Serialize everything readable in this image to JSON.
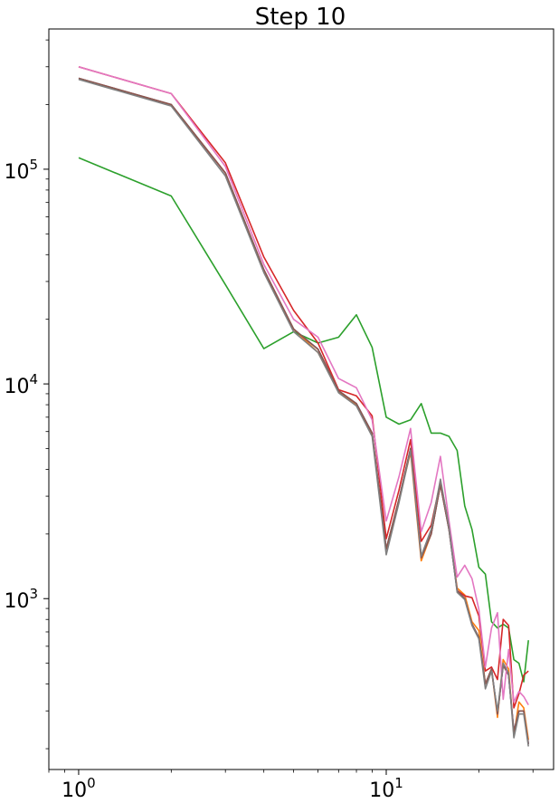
{
  "chart_data": {
    "type": "line",
    "title": "Step 10",
    "xlabel": "",
    "ylabel": "",
    "xscale": "log",
    "yscale": "log",
    "xlim": [
      0.8,
      35
    ],
    "ylim": [
      160,
      450000
    ],
    "grid": false,
    "legend": "none",
    "x_ticks": [
      {
        "value": 1,
        "base": "10",
        "exp": "0"
      },
      {
        "value": 10,
        "base": "10",
        "exp": "1"
      }
    ],
    "y_ticks": [
      {
        "value": 1000,
        "base": "10",
        "exp": "3"
      },
      {
        "value": 10000,
        "base": "10",
        "exp": "4"
      },
      {
        "value": 100000,
        "base": "10",
        "exp": "5"
      }
    ],
    "x": [
      1,
      2,
      3,
      4,
      5,
      6,
      7,
      8,
      9,
      10,
      11,
      12,
      13,
      14,
      15,
      16,
      17,
      18,
      19,
      20,
      21,
      22,
      23,
      24,
      25,
      26,
      27,
      28,
      29,
      30,
      31
    ],
    "series": [
      {
        "color": "#1f77b4",
        "values": [
          265000,
          200000,
          96000,
          34000,
          18000,
          14500,
          9300,
          8100,
          5900,
          1700,
          2900,
          5000,
          1550,
          2000,
          3400,
          2100,
          1090,
          1000,
          760,
          660,
          400,
          470,
          290,
          490,
          440,
          240,
          300,
          300,
          210,
          null,
          null
        ]
      },
      {
        "color": "#ff7f0e",
        "values": [
          265000,
          200000,
          96000,
          34000,
          18000,
          14000,
          9200,
          8000,
          5800,
          1700,
          2900,
          4800,
          1500,
          2000,
          3400,
          2100,
          1120,
          1040,
          780,
          710,
          400,
          470,
          280,
          520,
          470,
          230,
          330,
          310,
          220,
          null,
          null
        ]
      },
      {
        "color": "#2ca02c",
        "values": [
          113000,
          75000,
          29000,
          14600,
          17500,
          15500,
          16500,
          21000,
          14800,
          7000,
          6500,
          6800,
          8100,
          5900,
          5900,
          5700,
          4900,
          2700,
          2100,
          1400,
          1300,
          780,
          730,
          760,
          730,
          520,
          500,
          410,
          640,
          null,
          null
        ]
      },
      {
        "color": "#d62728",
        "values": [
          300000,
          225000,
          107000,
          39000,
          22000,
          15500,
          9400,
          8800,
          7100,
          1900,
          3200,
          5500,
          1850,
          2200,
          3500,
          2200,
          1090,
          1030,
          1010,
          830,
          460,
          480,
          420,
          800,
          750,
          310,
          360,
          440,
          460,
          null,
          null
        ]
      },
      {
        "color": "#9467bd",
        "values": [
          265000,
          200000,
          96000,
          34000,
          18000,
          14500,
          9300,
          8100,
          5900,
          1700,
          2900,
          5000,
          1550,
          2000,
          3400,
          2100,
          1090,
          1000,
          760,
          660,
          400,
          470,
          290,
          490,
          440,
          240,
          300,
          300,
          210,
          null,
          null
        ]
      },
      {
        "color": "#8c564b",
        "values": [
          265000,
          200000,
          96000,
          34000,
          18000,
          14500,
          9300,
          8100,
          5900,
          1700,
          2900,
          5000,
          1550,
          2000,
          3400,
          2100,
          1090,
          1000,
          760,
          660,
          400,
          470,
          290,
          490,
          440,
          240,
          300,
          300,
          210,
          null,
          null
        ]
      },
      {
        "color": "#e377c2",
        "values": [
          300000,
          225000,
          103000,
          36000,
          20000,
          16500,
          10600,
          9600,
          6800,
          2300,
          3700,
          6200,
          2050,
          2800,
          4600,
          2300,
          1260,
          1430,
          1240,
          890,
          480,
          730,
          860,
          340,
          580,
          330,
          370,
          350,
          320,
          null,
          null
        ]
      },
      {
        "color": "#7f7f7f",
        "values": [
          262000,
          197000,
          93000,
          33000,
          17500,
          14000,
          9100,
          7900,
          5700,
          1600,
          2800,
          4900,
          1580,
          2100,
          3600,
          2150,
          1070,
          990,
          750,
          650,
          380,
          460,
          300,
          500,
          450,
          225,
          290,
          290,
          205,
          null,
          null
        ]
      }
    ]
  }
}
